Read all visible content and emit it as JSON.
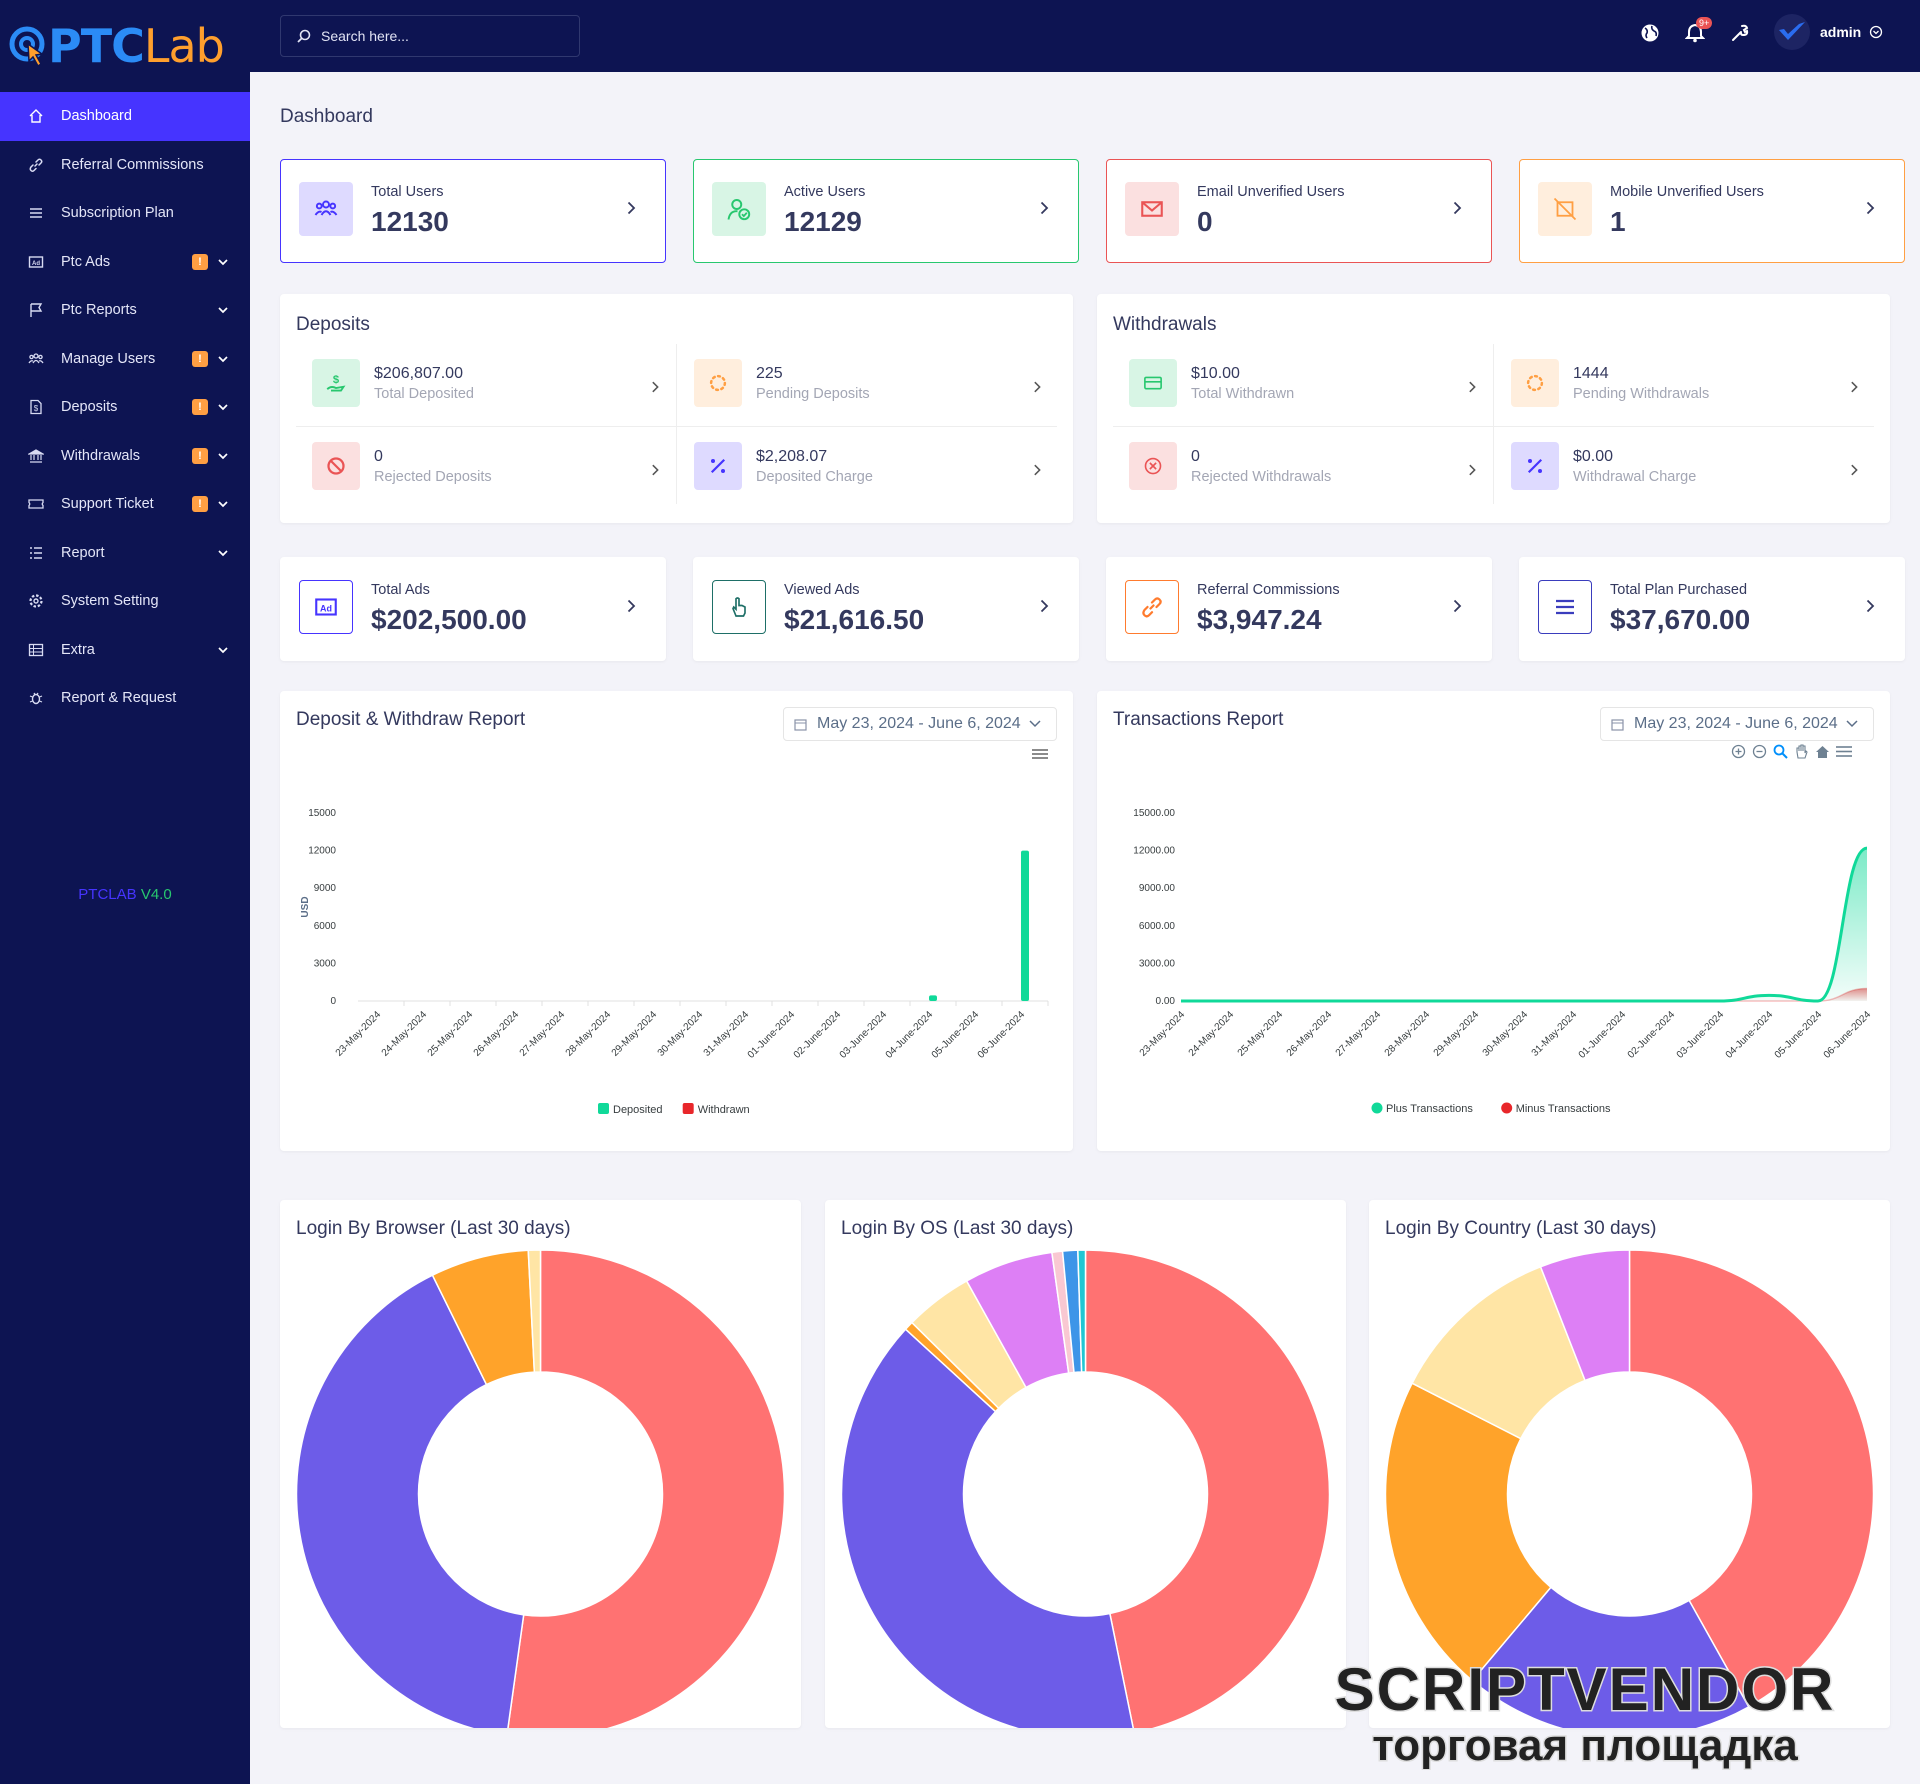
{
  "brand": {
    "logo_a": "PTC",
    "logo_b": "Lab",
    "version_a": "PTCLAB",
    "version_b": "V4.0"
  },
  "search": {
    "placeholder": "Search here..."
  },
  "topbar": {
    "notification_count": "9+",
    "user": "admin"
  },
  "sidebar": {
    "items": [
      {
        "label": "Dashboard",
        "icon": "home-icon",
        "active": true
      },
      {
        "label": "Referral Commissions",
        "icon": "link-icon"
      },
      {
        "label": "Subscription Plan",
        "icon": "list-icon"
      },
      {
        "label": "Ptc Ads",
        "icon": "ad-icon",
        "badge": "!",
        "chevron": true
      },
      {
        "label": "Ptc Reports",
        "icon": "flag-icon",
        "chevron": true
      },
      {
        "label": "Manage Users",
        "icon": "users-icon",
        "badge": "!",
        "chevron": true
      },
      {
        "label": "Deposits",
        "icon": "file-dollar-icon",
        "badge": "!",
        "chevron": true
      },
      {
        "label": "Withdrawals",
        "icon": "bank-icon",
        "badge": "!",
        "chevron": true
      },
      {
        "label": "Support Ticket",
        "icon": "ticket-icon",
        "badge": "!",
        "chevron": true
      },
      {
        "label": "Report",
        "icon": "report-list-icon",
        "chevron": true
      },
      {
        "label": "System Setting",
        "icon": "cog-icon"
      },
      {
        "label": "Extra",
        "icon": "server-icon",
        "chevron": true
      },
      {
        "label": "Report & Request",
        "icon": "bug-icon"
      }
    ]
  },
  "page": {
    "title": "Dashboard"
  },
  "user_widgets": [
    {
      "label": "Total Users",
      "value": "12130",
      "color": "#4634ff",
      "icon": "users-icon"
    },
    {
      "label": "Active Users",
      "value": "12129",
      "color": "#28c76f",
      "icon": "user-check-icon"
    },
    {
      "label": "Email Unverified Users",
      "value": "0",
      "color": "#ea5455",
      "icon": "envelope-icon"
    },
    {
      "label": "Mobile Unverified Users",
      "value": "1",
      "color": "#ff9f43",
      "icon": "mobile-slash-icon"
    }
  ],
  "deposits": {
    "title": "Deposits",
    "items": [
      {
        "value": "$206,807.00",
        "label": "Total Deposited",
        "icon": "hand-dollar-icon"
      },
      {
        "value": "225",
        "label": "Pending Deposits",
        "icon": "spinner-icon"
      },
      {
        "value": "0",
        "label": "Rejected Deposits",
        "icon": "ban-icon"
      },
      {
        "value": "$2,208.07",
        "label": "Deposited Charge",
        "icon": "percent-icon"
      }
    ]
  },
  "withdrawals": {
    "title": "Withdrawals",
    "items": [
      {
        "value": "$10.00",
        "label": "Total Withdrawn",
        "icon": "card-icon"
      },
      {
        "value": "1444",
        "label": "Pending Withdrawals",
        "icon": "spinner-icon"
      },
      {
        "value": "0",
        "label": "Rejected Withdrawals",
        "icon": "times-circle-icon"
      },
      {
        "value": "$0.00",
        "label": "Withdrawal Charge",
        "icon": "percent-icon"
      }
    ]
  },
  "ad_widgets": [
    {
      "label": "Total Ads",
      "value": "$202,500.00",
      "color": "#4634ff",
      "icon": "ad-icon"
    },
    {
      "label": "Viewed Ads",
      "value": "$21,616.50",
      "color": "#1e6f67",
      "icon": "hand-pointer-icon"
    },
    {
      "label": "Referral Commissions",
      "value": "$3,947.24",
      "color": "#ff7b2e",
      "icon": "link-icon"
    },
    {
      "label": "Total Plan Purchased",
      "value": "$37,670.00",
      "color": "#3a3dbd",
      "icon": "list-icon"
    }
  ],
  "deposit_report": {
    "title": "Deposit & Withdraw Report",
    "range": "May 23, 2024 - June 6, 2024"
  },
  "transactions_report": {
    "title": "Transactions Report",
    "range": "May 23, 2024 - June 6, 2024"
  },
  "chart_data": [
    {
      "type": "bar",
      "title": "Deposit & Withdraw Report",
      "ylabel": "USD",
      "ylim": [
        0,
        15000
      ],
      "yticks": [
        "15000",
        "12000",
        "9000",
        "6000",
        "3000",
        "0"
      ],
      "categories": [
        "23-May-2024",
        "24-May-2024",
        "25-May-2024",
        "26-May-2024",
        "27-May-2024",
        "28-May-2024",
        "29-May-2024",
        "30-May-2024",
        "31-May-2024",
        "01-June-2024",
        "02-June-2024",
        "03-June-2024",
        "04-June-2024",
        "05-June-2024",
        "06-June-2024"
      ],
      "series": [
        {
          "name": "Deposited",
          "color": "#10d999",
          "values": [
            0,
            0,
            0,
            0,
            0,
            0,
            0,
            0,
            0,
            0,
            0,
            0,
            450,
            0,
            12000
          ]
        },
        {
          "name": "Withdrawn",
          "color": "#e8262a",
          "values": [
            0,
            0,
            0,
            0,
            0,
            0,
            0,
            0,
            0,
            0,
            0,
            0,
            0,
            0,
            0
          ]
        }
      ],
      "legend": "bottom"
    },
    {
      "type": "area",
      "title": "Transactions Report",
      "ylim": [
        0,
        15000
      ],
      "yticks": [
        "15000.00",
        "12000.00",
        "9000.00",
        "6000.00",
        "3000.00",
        "0.00"
      ],
      "categories": [
        "23-May-2024",
        "24-May-2024",
        "25-May-2024",
        "26-May-2024",
        "27-May-2024",
        "28-May-2024",
        "29-May-2024",
        "30-May-2024",
        "31-May-2024",
        "01-June-2024",
        "02-June-2024",
        "03-June-2024",
        "04-June-2024",
        "05-June-2024",
        "06-June-2024"
      ],
      "series": [
        {
          "name": "Plus Transactions",
          "color": "#10d999",
          "values": [
            0,
            0,
            0,
            0,
            0,
            0,
            0,
            0,
            0,
            0,
            0,
            0,
            450,
            0,
            12200
          ]
        },
        {
          "name": "Minus Transactions",
          "color": "#e8262a",
          "values": [
            0,
            0,
            0,
            0,
            0,
            0,
            0,
            0,
            0,
            0,
            0,
            0,
            0,
            0,
            1000
          ]
        }
      ],
      "legend": "bottom"
    },
    {
      "type": "pie",
      "title": "Login By Browser (Last 30 days)",
      "slices": [
        {
          "value": 52.2,
          "color": "#ff7272"
        },
        {
          "value": 40.5,
          "color": "#6d5ce8"
        },
        {
          "value": 6.5,
          "color": "#ffa32a"
        },
        {
          "value": 0.8,
          "color": "#ffe5a5"
        }
      ]
    },
    {
      "type": "pie",
      "title": "Login By OS (Last 30 days)",
      "slices": [
        {
          "value": 46.8,
          "color": "#ff7272"
        },
        {
          "value": 40.0,
          "color": "#6d5ce8"
        },
        {
          "value": 0.6,
          "color": "#ffa32a"
        },
        {
          "value": 4.5,
          "color": "#ffe5a5"
        },
        {
          "value": 5.9,
          "color": "#dd7ff5"
        },
        {
          "value": 0.7,
          "color": "#f9c8d2"
        },
        {
          "value": 1.0,
          "color": "#3d95e8"
        },
        {
          "value": 0.5,
          "color": "#21c7d3"
        }
      ]
    },
    {
      "type": "pie",
      "title": "Login By Country (Last 30 days)",
      "slices": [
        {
          "value": 40.2,
          "color": "#ff7272"
        },
        {
          "value": 18.5,
          "color": "#6d5ce8"
        },
        {
          "value": 20.5,
          "color": "#ffa32a"
        },
        {
          "value": 11.1,
          "color": "#ffe5a5"
        },
        {
          "value": 5.7,
          "color": "#dd7ff5"
        }
      ]
    }
  ],
  "watermark": {
    "line1": "SCRIPTVENDOR",
    "line2": "торговая площадка"
  }
}
